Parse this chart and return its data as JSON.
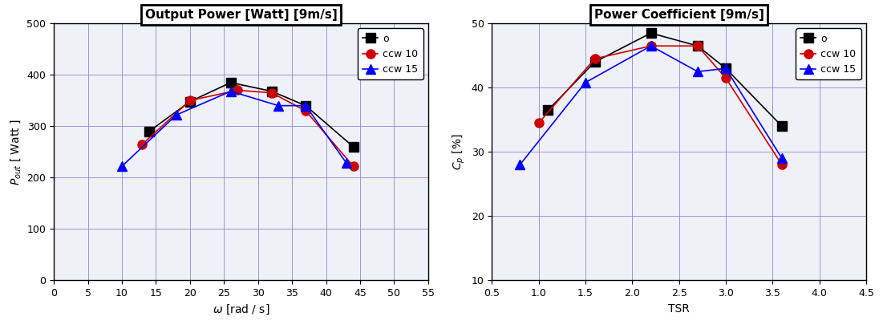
{
  "left": {
    "title_bold": "Output Power [Watt]",
    "title_small": " [9m/s]",
    "xlabel": "ω [rad / s]",
    "ylabel": "P_out [ Watt ]",
    "xlim": [
      0,
      55
    ],
    "ylim": [
      0,
      500
    ],
    "xticks": [
      0,
      5,
      10,
      15,
      20,
      25,
      30,
      35,
      40,
      45,
      50,
      55
    ],
    "yticks": [
      0,
      100,
      200,
      300,
      400,
      500
    ],
    "series": {
      "o": {
        "x": [
          14,
          20,
          26,
          32,
          37,
          44
        ],
        "y": [
          290,
          348,
          385,
          368,
          340,
          260
        ],
        "color": "black",
        "marker": "s",
        "linestyle": "-"
      },
      "ccw 10": {
        "x": [
          13,
          20,
          27,
          32,
          37,
          44
        ],
        "y": [
          265,
          350,
          370,
          365,
          330,
          222
        ],
        "color": "#cc0000",
        "marker": "o",
        "linestyle": "-"
      },
      "ccw 15": {
        "x": [
          10,
          18,
          26,
          33,
          37,
          43
        ],
        "y": [
          222,
          322,
          368,
          340,
          340,
          228
        ],
        "color": "blue",
        "marker": "^",
        "linestyle": "-"
      }
    }
  },
  "right": {
    "title_bold": "Power Coefficient",
    "title_small": " [9m/s]",
    "xlabel": "TSR",
    "ylabel": "Cp [%]",
    "xlim": [
      0.5,
      4.5
    ],
    "ylim": [
      10,
      50
    ],
    "xticks": [
      0.5,
      1.0,
      1.5,
      2.0,
      2.5,
      3.0,
      3.5,
      4.0,
      4.5
    ],
    "yticks": [
      10,
      20,
      30,
      40,
      50
    ],
    "series": {
      "o": {
        "x": [
          1.1,
          1.6,
          2.2,
          2.7,
          3.0,
          3.6
        ],
        "y": [
          36.5,
          44.0,
          48.5,
          46.5,
          43.0,
          34.0
        ],
        "color": "black",
        "marker": "s",
        "linestyle": "-"
      },
      "ccw 10": {
        "x": [
          1.0,
          1.6,
          2.2,
          2.7,
          3.0,
          3.6
        ],
        "y": [
          34.5,
          44.5,
          46.5,
          46.5,
          41.5,
          28.0
        ],
        "color": "#cc0000",
        "marker": "o",
        "linestyle": "-"
      },
      "ccw 15": {
        "x": [
          0.8,
          1.5,
          2.2,
          2.7,
          3.0,
          3.6
        ],
        "y": [
          28.0,
          40.8,
          46.5,
          42.5,
          43.0,
          29.0
        ],
        "color": "blue",
        "marker": "^",
        "linestyle": "-"
      }
    }
  },
  "background_color": "#f0f0f8",
  "grid_color": "#8888cc",
  "markersize": 8,
  "linewidth": 1.2
}
